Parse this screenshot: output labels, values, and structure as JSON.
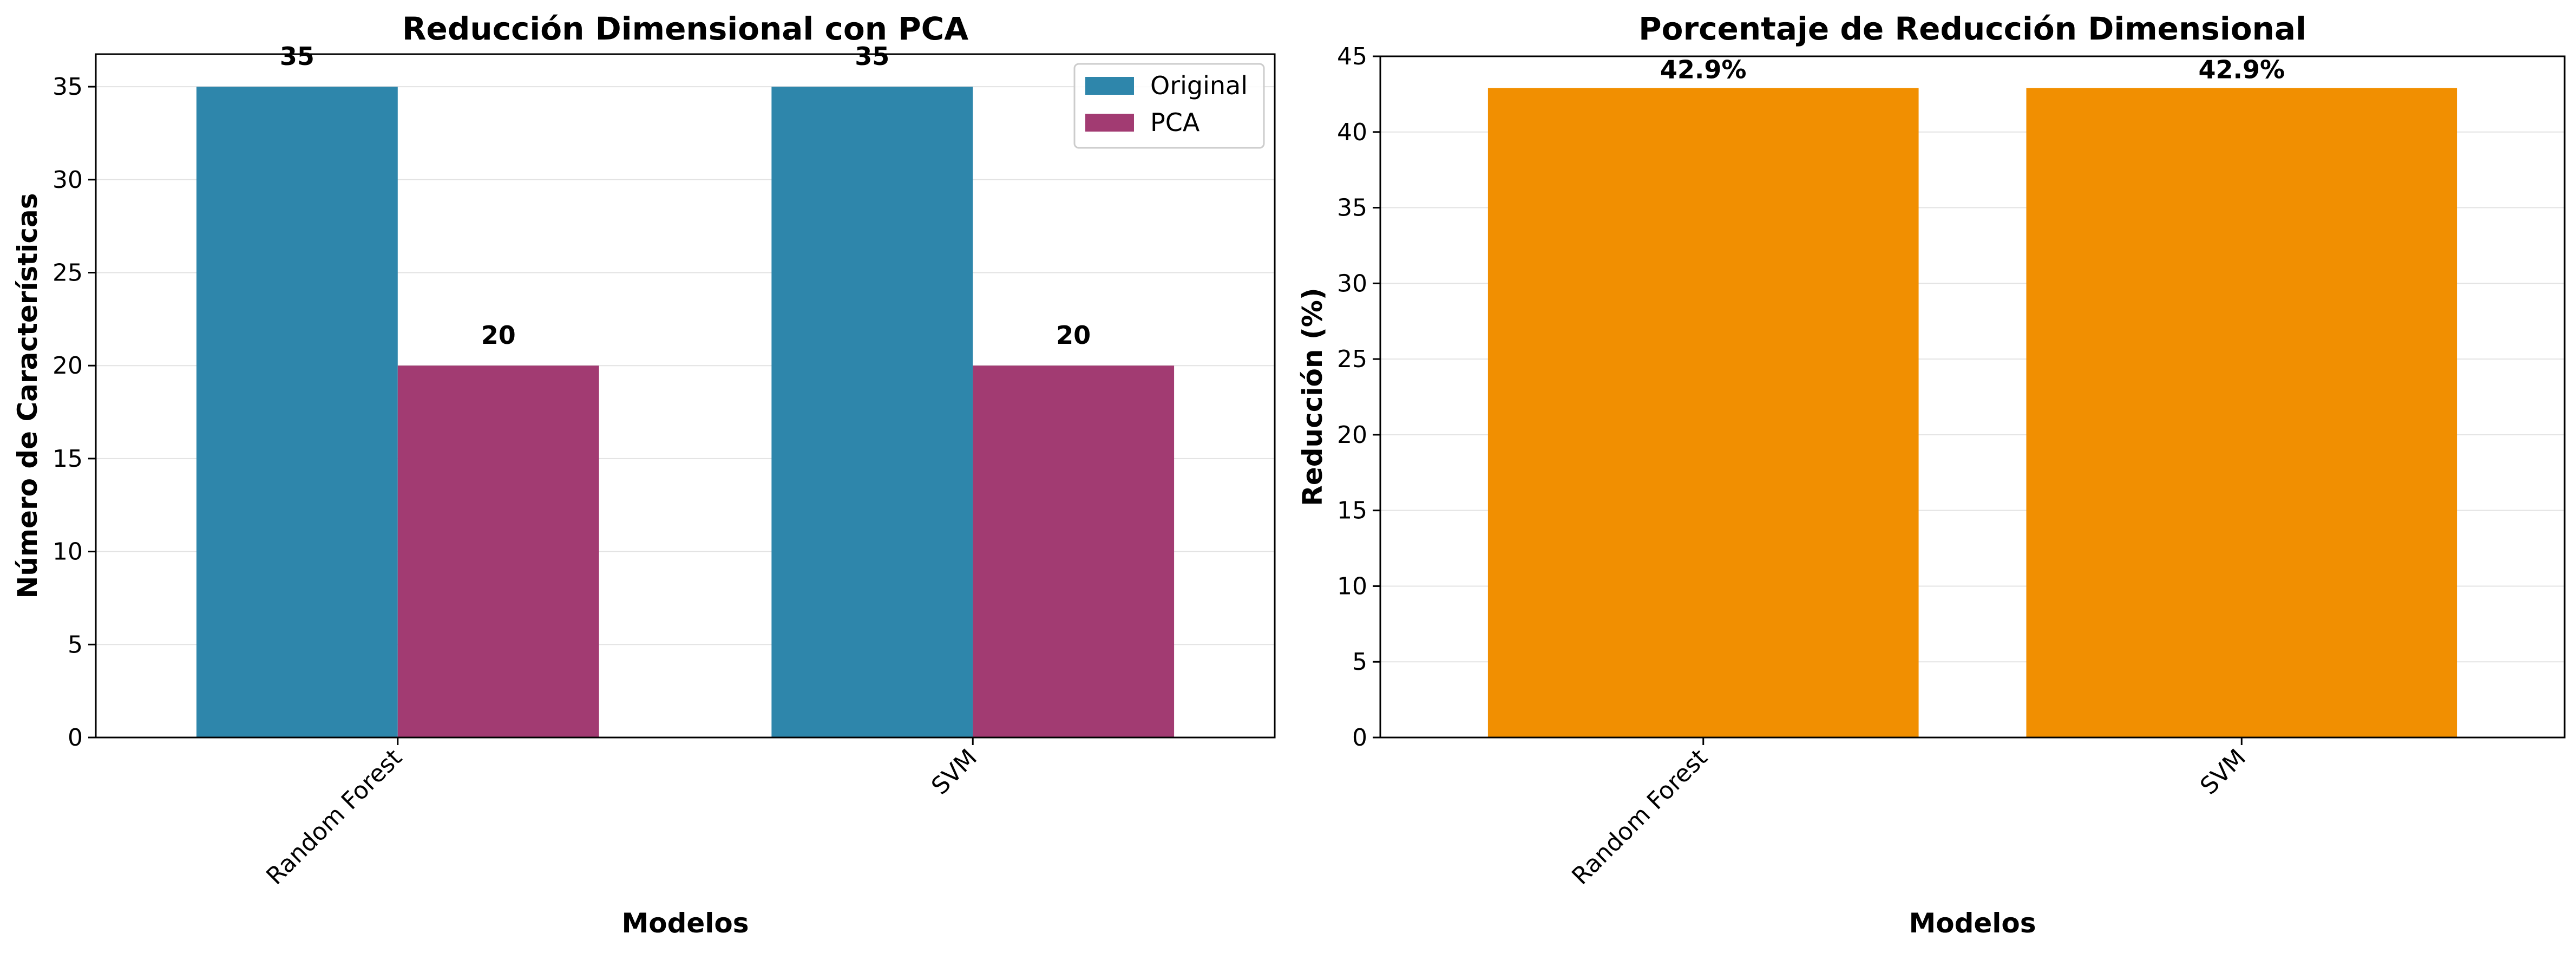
{
  "chart_data": [
    {
      "type": "bar",
      "title": "Reducción Dimensional con PCA",
      "xlabel": "Modelos",
      "ylabel": "Número de Características",
      "categories": [
        "Random Forest",
        "SVM"
      ],
      "series": [
        {
          "name": "Original",
          "values": [
            35,
            35
          ],
          "color": "#2e86ab"
        },
        {
          "name": "PCA",
          "values": [
            20,
            20
          ],
          "color": "#a23b72"
        }
      ],
      "data_labels": [
        "35",
        "35",
        "20",
        "20"
      ],
      "ylim": [
        0,
        36.75
      ],
      "yticks": [
        0,
        5,
        10,
        15,
        20,
        25,
        30,
        35
      ],
      "grid": true,
      "legend_position": "top-right"
    },
    {
      "type": "bar",
      "title": "Porcentaje de Reducción Dimensional",
      "xlabel": "Modelos",
      "ylabel": "Reducción (%)",
      "categories": [
        "Random Forest",
        "SVM"
      ],
      "values": [
        42.9,
        42.9
      ],
      "color": "#f18f01",
      "data_labels": [
        "42.9%",
        "42.9%"
      ],
      "ylim": [
        0,
        45
      ],
      "yticks": [
        0,
        5,
        10,
        15,
        20,
        25,
        30,
        35,
        40,
        45
      ],
      "grid": true
    }
  ]
}
